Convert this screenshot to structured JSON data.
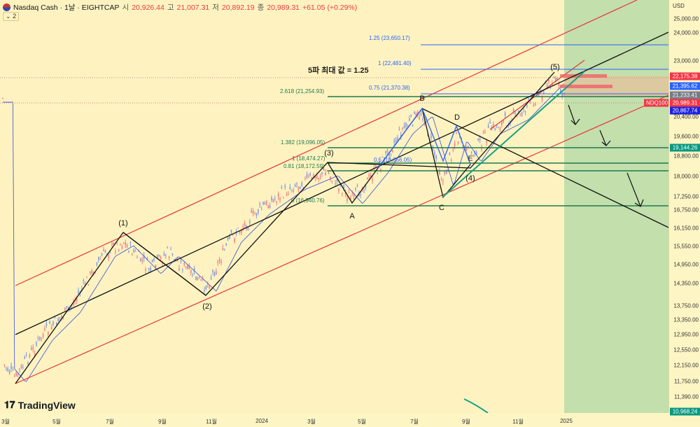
{
  "header": {
    "symbol": "Nasdaq Cash · 1날 · EIGHTCAP",
    "open_label": "시",
    "open": "20,926.44",
    "high_label": "고",
    "high": "21,007.31",
    "low_label": "저",
    "low": "20,892.19",
    "close_label": "종",
    "close": "20,989.31",
    "change": "+61.05 (+0.29%)",
    "indicators_count": "2"
  },
  "annotation_title": "5파 최대 값 = 1.25",
  "fib_labels": [
    "1.25 (23,650.17)",
    "1 (22,481.40)",
    "0.75 (21,370.38)",
    "2.618 (21,254.93)",
    "1.382 (19,096.05)",
    "1 (18,474.27)",
    "0.81 (18,172.59)",
    "0.5 (18,356.05)",
    "0 (16,940.76)"
  ],
  "wave_labels": [
    "(1)",
    "(2)",
    "(3)",
    "(4)",
    "(5)",
    "A",
    "B",
    "C",
    "D",
    "E"
  ],
  "yaxis": {
    "currency": "USD",
    "ticks": [
      "25,000.00",
      "24,000.00",
      "23,000.00",
      "20,400.00",
      "19,600.00",
      "18,800.00",
      "18,000.00",
      "17,250.00",
      "16,750.00",
      "16,150.00",
      "15,550.00",
      "14,950.00",
      "14,350.00",
      "13,750.00",
      "13,350.00",
      "12,950.00",
      "12,550.00",
      "12,150.00",
      "11,750.00",
      "11,390.00"
    ]
  },
  "price_tags": [
    {
      "value": "22,175.38",
      "color": "#f23645"
    },
    {
      "value": "21,395.62",
      "color": "#2962ff"
    },
    {
      "value": "21,233.41",
      "color": "#787b86"
    },
    {
      "value": "20,989.31",
      "color": "#f23645"
    },
    {
      "value": "20,867.74",
      "color": "#1e22e0"
    },
    {
      "value": "19,144.26",
      "color": "#089981"
    },
    {
      "value": "10,968.24",
      "color": "#089981"
    }
  ],
  "symbol_tag": "NDQ100",
  "xaxis": {
    "ticks": [
      "3월",
      "5월",
      "7월",
      "9월",
      "11월",
      "2024",
      "3월",
      "5월",
      "7월",
      "9월",
      "11월",
      "2025"
    ]
  },
  "brand": "TradingView",
  "colors": {
    "background": "#fef3c0",
    "up": "#f77c80",
    "down": "#7e9ae8",
    "channel": "#e8323c",
    "fib_green": "#1f7a4e",
    "fib_blue": "#2962ff",
    "target_zone": "#b7dba8"
  }
}
